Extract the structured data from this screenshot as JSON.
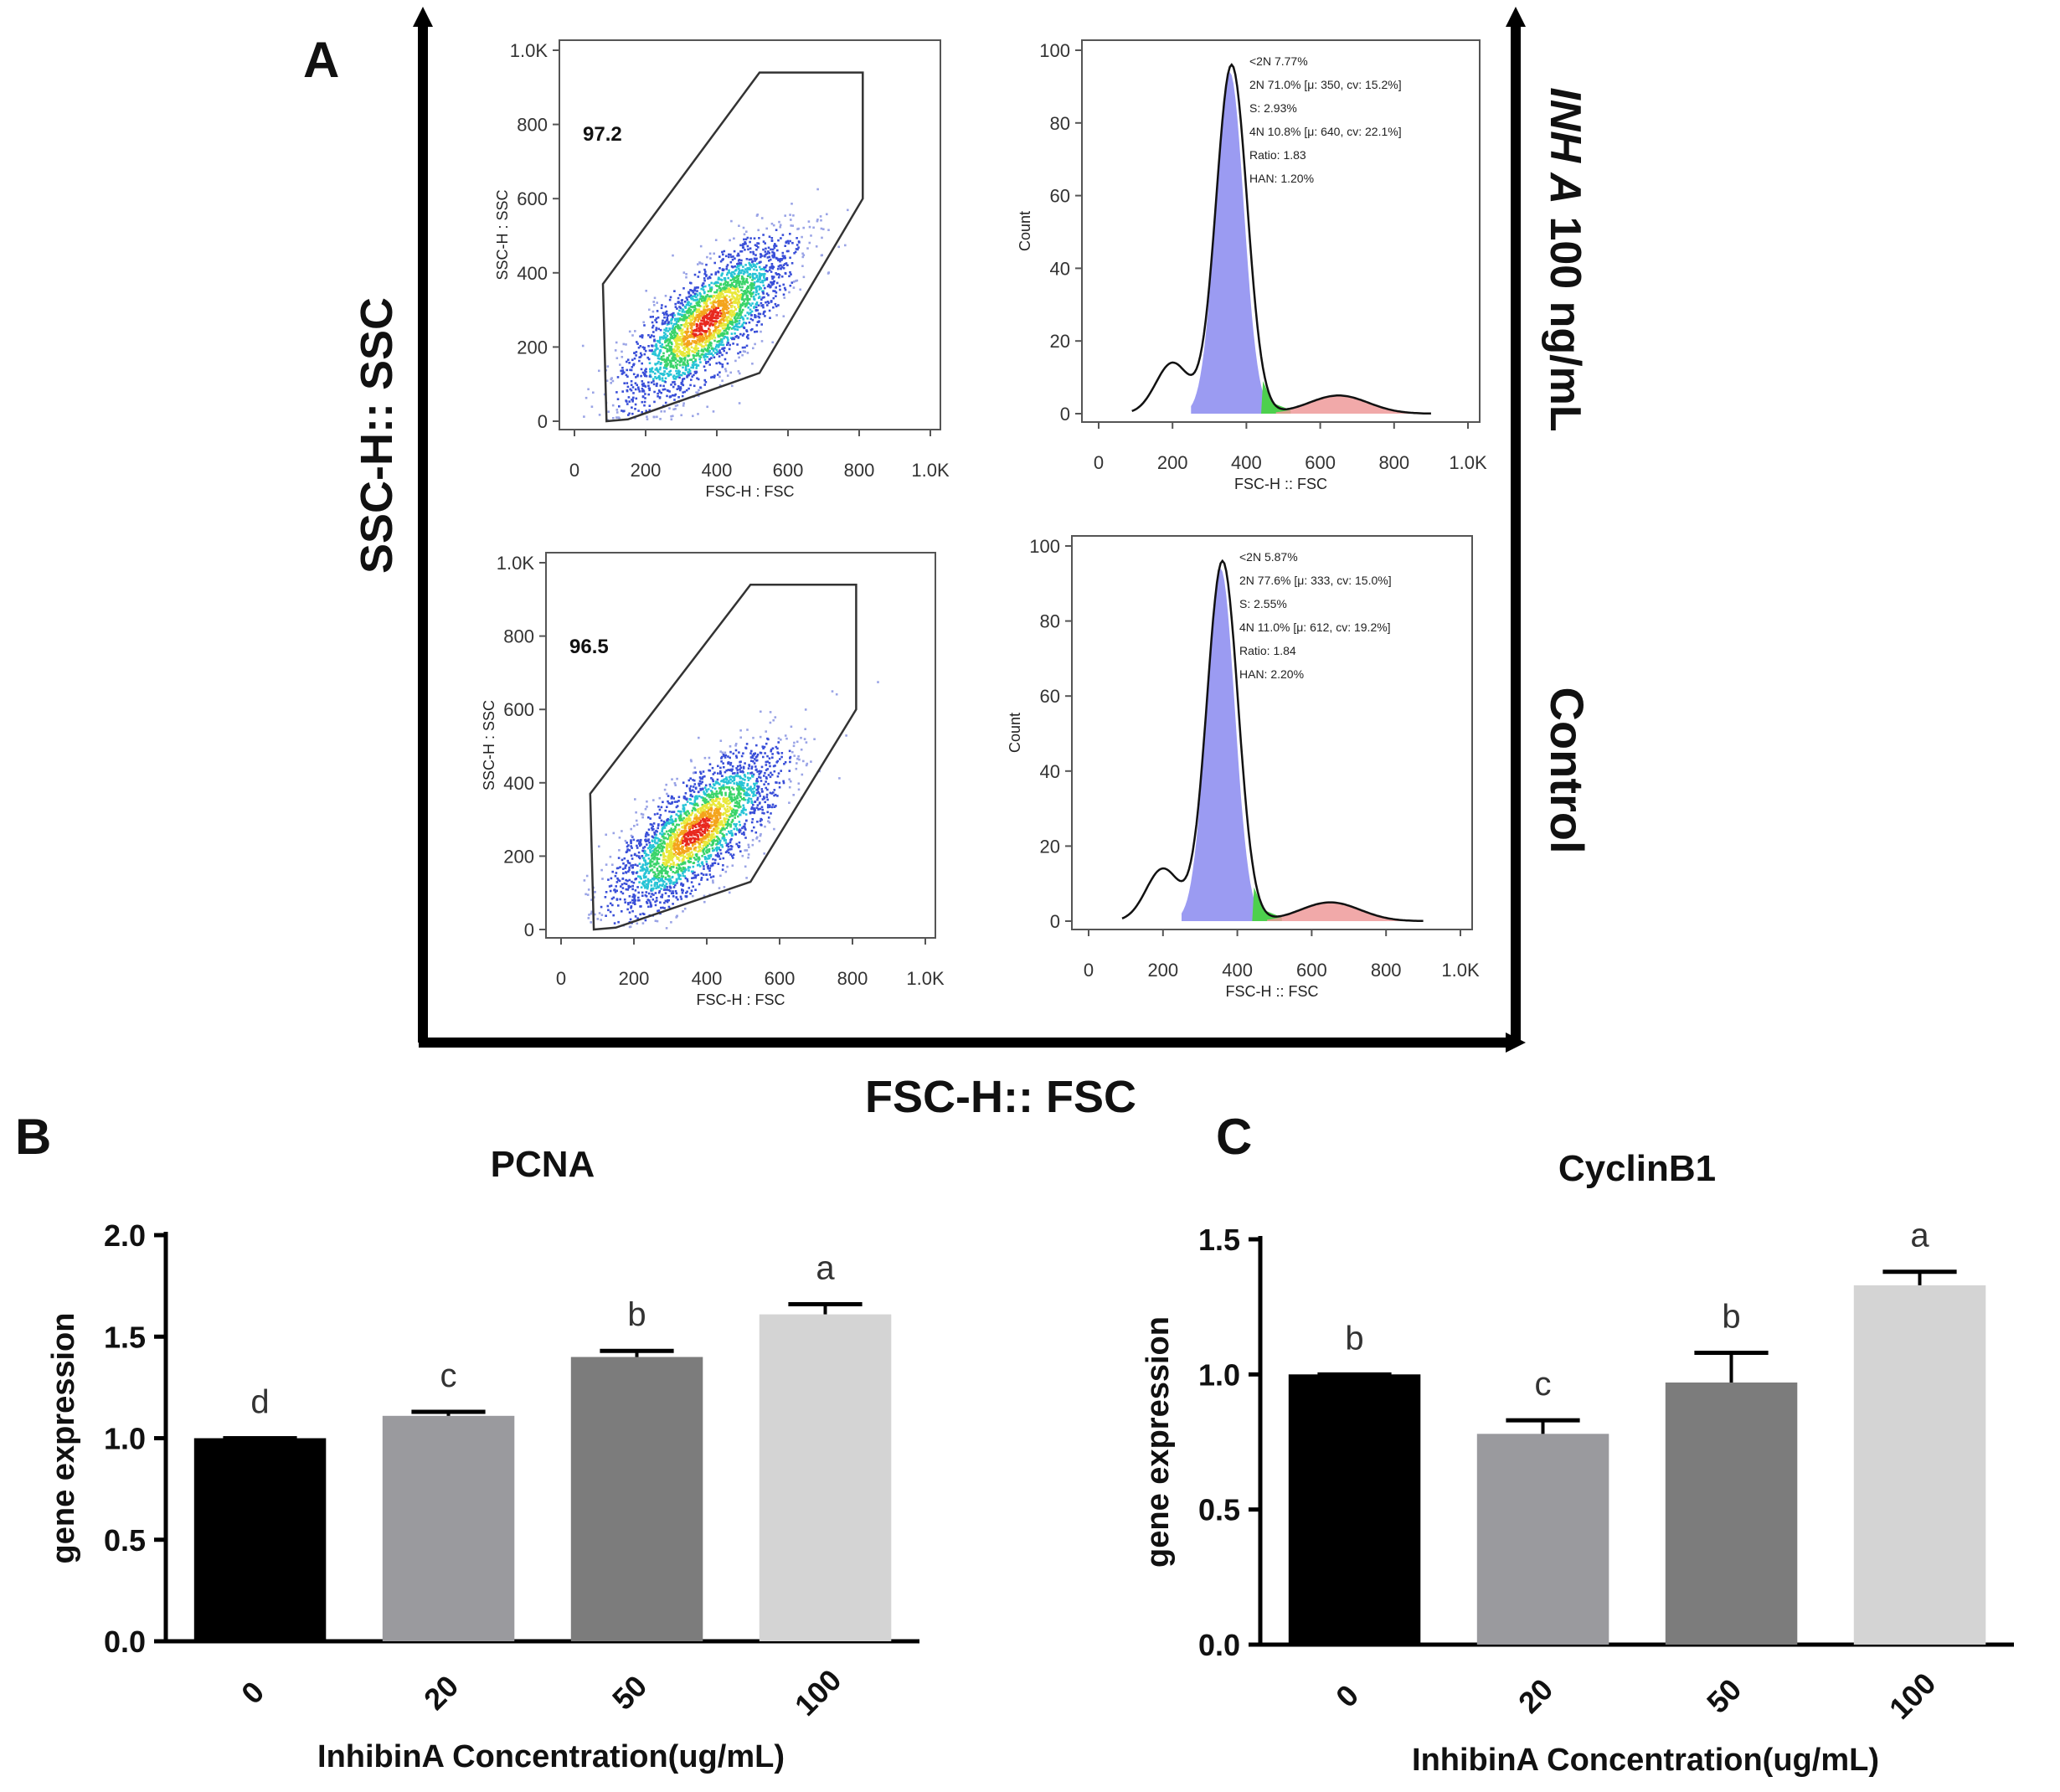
{
  "figure": {
    "panel_a_label": "A",
    "panel_b_label": "B",
    "panel_c_label": "C",
    "y_axis_outer_label": "SSC-H:: SSC",
    "x_axis_outer_label": "FSC-H:: FSC",
    "row_label_top": "INH A 100 ng/mL",
    "row_label_top_italic_part": "INH A",
    "row_label_top_rest": " 100 ng/mL",
    "row_label_bottom": "Control"
  },
  "flow": {
    "scatter_x_label": "FSC-H : FSC",
    "scatter_y_label": "SSC-H : SSC",
    "hist_x_label": "FSC-H :: FSC",
    "hist_y_label": "Count",
    "scatter_xticks": [
      "0",
      "200",
      "400",
      "600",
      "800",
      "1.0K"
    ],
    "scatter_yticks": [
      "0",
      "200",
      "400",
      "600",
      "800",
      "1.0K"
    ],
    "hist_xticks": [
      "0",
      "200",
      "400",
      "600",
      "800",
      "1.0K"
    ],
    "hist_yticks": [
      "0",
      "20",
      "40",
      "60",
      "80",
      "100"
    ],
    "top": {
      "gate_percent": "97.2",
      "stats": [
        "<2N 7.77%",
        "2N 71.0% [μ: 350, cv: 15.2%]",
        "S: 2.93%",
        "4N 10.8% [μ: 640, cv: 22.1%]",
        "Ratio: 1.83",
        "HAN: 1.20%"
      ]
    },
    "bottom": {
      "gate_percent": "96.5",
      "stats": [
        "<2N 5.87%",
        "2N 77.6% [μ: 333, cv: 15.0%]",
        "S: 2.55%",
        "4N 11.0% [μ: 612, cv: 19.2%]",
        "Ratio: 1.84",
        "HAN: 2.20%"
      ]
    }
  },
  "chart_data": [
    {
      "type": "bar",
      "panel": "B",
      "title": "PCNA",
      "categories": [
        "0",
        "20",
        "50",
        "100"
      ],
      "values": [
        1.0,
        1.11,
        1.4,
        1.61
      ],
      "errors": [
        0.0,
        0.02,
        0.03,
        0.05
      ],
      "letters": [
        "d",
        "c",
        "b",
        "a"
      ],
      "colors": [
        "#000000",
        "#9a9a9e",
        "#7c7c7c",
        "#d4d4d4"
      ],
      "xlabel": "InhibinA Concentration(ug/mL)",
      "ylabel": "gene expression",
      "ylim": [
        0,
        2.0
      ],
      "yticks": [
        "0.0",
        "0.5",
        "1.0",
        "1.5",
        "2.0"
      ],
      "grid": false
    },
    {
      "type": "bar",
      "panel": "C",
      "title": "CyclinB1",
      "categories": [
        "0",
        "20",
        "50",
        "100"
      ],
      "values": [
        1.0,
        0.78,
        0.97,
        1.33
      ],
      "errors": [
        0.0,
        0.05,
        0.11,
        0.05
      ],
      "letters": [
        "b",
        "c",
        "b",
        "a"
      ],
      "colors": [
        "#000000",
        "#9a9a9e",
        "#7c7c7c",
        "#d4d4d4"
      ],
      "xlabel": "InhibinA Concentration(ug/mL)",
      "ylabel": "gene expression",
      "ylim": [
        0,
        1.5
      ],
      "yticks": [
        "0.0",
        "0.5",
        "1.0",
        "1.5"
      ],
      "grid": false
    }
  ]
}
